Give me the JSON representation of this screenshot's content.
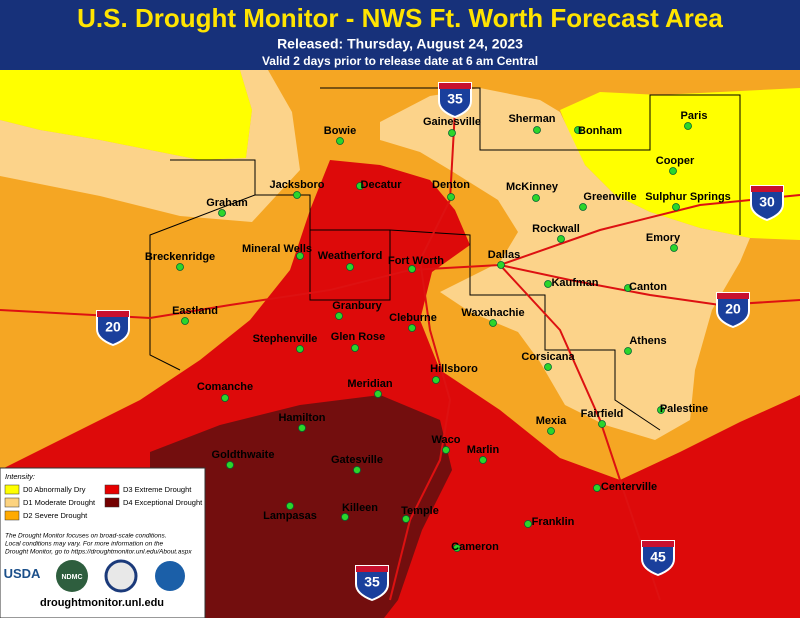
{
  "header": {
    "title": "U.S. Drought Monitor - NWS Ft. Worth Forecast Area",
    "released": "Released: Thursday, August 24, 2023",
    "valid": "Valid 2 days prior to release date at 6 am Central"
  },
  "cities": [
    "Bowie",
    "Gainesville",
    "Sherman",
    "Bonham",
    "Paris",
    "Cooper",
    "Sulphur Springs",
    "Graham",
    "Jacksboro",
    "Decatur",
    "Denton",
    "McKinney",
    "Greenville",
    "Rockwall",
    "Emory",
    "Breckenridge",
    "Mineral Wells",
    "Weatherford",
    "Fort Worth",
    "Dallas",
    "Kaufman",
    "Canton",
    "Eastland",
    "Granbury",
    "Stephenville",
    "Glen Rose",
    "Cleburne",
    "Waxahachie",
    "Corsicana",
    "Athens",
    "Hillsboro",
    "Comanche",
    "Meridian",
    "Hamilton",
    "Fairfield",
    "Mexia",
    "Palestine",
    "Waco",
    "Goldthwaite",
    "Gatesville",
    "Marlin",
    "Centerville",
    "Lampasas",
    "Killeen",
    "Temple",
    "Franklin",
    "Cameron"
  ],
  "interstates": [
    35,
    30,
    20,
    20,
    35,
    45
  ],
  "legend": {
    "title": "Intensity:",
    "items": [
      {
        "label": "D0 Abnormally Dry",
        "color": "#ffff00"
      },
      {
        "label": "D1 Moderate Drought",
        "color": "#fcd37f"
      },
      {
        "label": "D2 Severe Drought",
        "color": "#ffaa00"
      },
      {
        "label": "D3 Extreme Drought",
        "color": "#e60000"
      },
      {
        "label": "D4 Exceptional Drought",
        "color": "#730000"
      }
    ],
    "note": [
      "The Drought Monitor focuses on broad-scale conditions.",
      "Local conditions may vary. For more information on the",
      "Drought Monitor, go to https://droughtmonitor.unl.edu/About.aspx"
    ]
  },
  "logos": {
    "usda": "USDA",
    "ndmc": "NDMC"
  },
  "url": "droughtmonitor.unl.edu"
}
